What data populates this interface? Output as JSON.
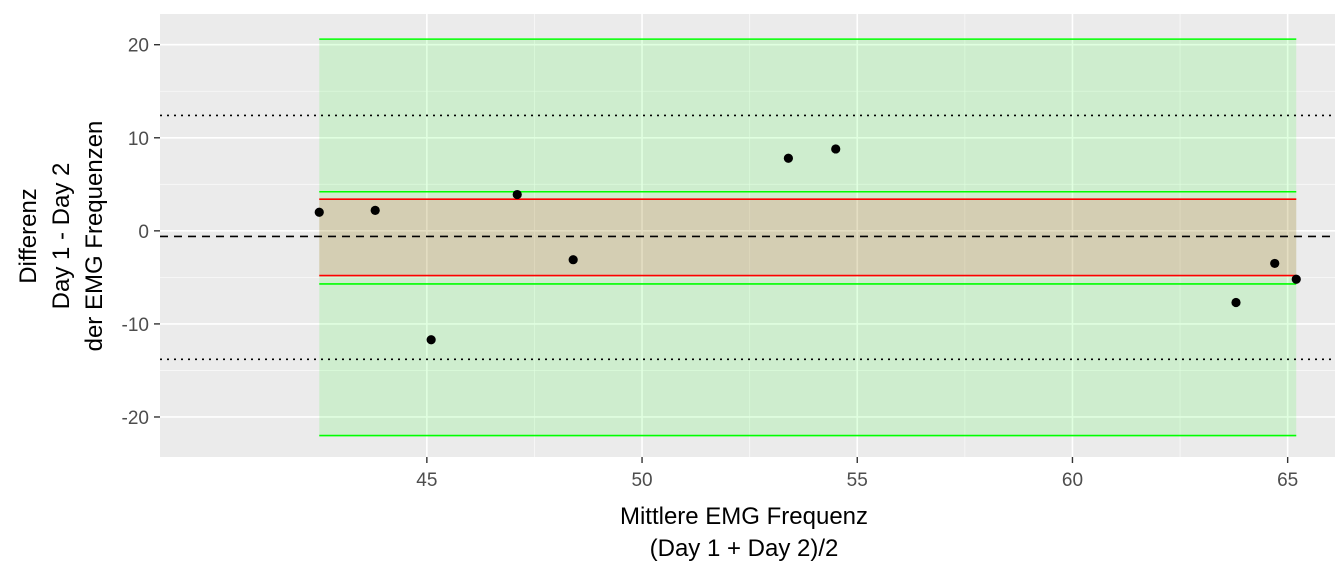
{
  "chart_data": {
    "type": "scatter",
    "title": "",
    "xlabel_lines": [
      "Mittlere EMG Frequenz",
      "(Day 1 + Day 2)/2"
    ],
    "ylabel_lines": [
      "Differenz",
      "Day 1 - Day 2",
      "der EMG Frequenzen"
    ],
    "xlim": [
      38.8,
      66.1
    ],
    "ylim": [
      -24.3,
      23.3
    ],
    "x_ticks": [
      45,
      50,
      55,
      60,
      65
    ],
    "y_ticks": [
      -20,
      -10,
      0,
      10,
      20
    ],
    "grid": true,
    "points": [
      {
        "x": 42.5,
        "y": 2.0
      },
      {
        "x": 43.8,
        "y": 2.2
      },
      {
        "x": 45.1,
        "y": -11.7
      },
      {
        "x": 47.1,
        "y": 3.9
      },
      {
        "x": 48.4,
        "y": -3.1
      },
      {
        "x": 53.4,
        "y": 7.8
      },
      {
        "x": 54.5,
        "y": 8.8
      },
      {
        "x": 63.8,
        "y": -7.7
      },
      {
        "x": 64.7,
        "y": -3.5
      },
      {
        "x": 65.2,
        "y": -5.2
      }
    ],
    "bias_line": {
      "y": -0.6,
      "style": "dashed"
    },
    "limits_of_agreement": [
      {
        "y": 12.4,
        "style": "dotted"
      },
      {
        "y": -13.8,
        "style": "dotted"
      }
    ],
    "bands": [
      {
        "x_range": [
          42.5,
          65.2
        ],
        "y_range": [
          -22.0,
          20.6
        ],
        "color": "#00ff00",
        "fill_opacity": 0.12
      },
      {
        "x_range": [
          42.5,
          65.2
        ],
        "y_range": [
          -5.7,
          4.2
        ],
        "color": "#00ff00",
        "fill_opacity": 0
      },
      {
        "x_range": [
          42.5,
          65.2
        ],
        "y_range": [
          -4.8,
          3.4
        ],
        "color": "#ff0000",
        "fill_opacity": 0.13
      }
    ],
    "colors": {
      "panel_background": "#ebebeb",
      "grid_major": "#ffffff",
      "point": "#000000",
      "band_green": "#00ff00",
      "band_red": "#ff0000"
    }
  }
}
